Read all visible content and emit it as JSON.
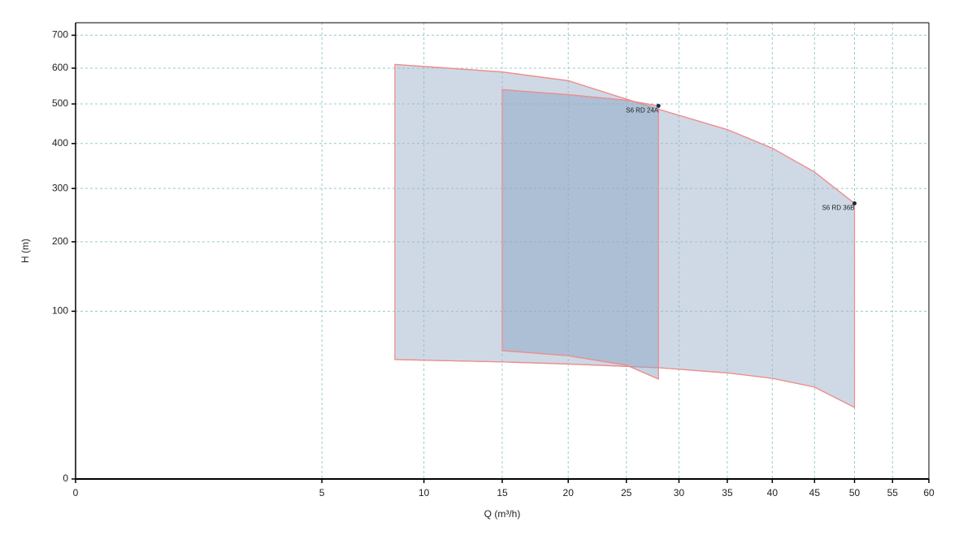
{
  "chart_data": {
    "type": "area-range",
    "x_label": "Q (m³/h)",
    "y_label": "H (m)",
    "xscale": "sqrt",
    "yscale": "sqrt",
    "xlim": [
      0,
      60
    ],
    "ylim": [
      0,
      740
    ],
    "xticks": [
      0,
      5,
      10,
      15,
      20,
      25,
      30,
      35,
      40,
      45,
      50,
      55,
      60
    ],
    "yticks": [
      0,
      100,
      200,
      300,
      400,
      500,
      600,
      700
    ],
    "grid": true,
    "line_color": "#f08a8a",
    "series": [
      {
        "name": "S6 RD 36B",
        "color": "#9db4cc",
        "x": [
          8.4,
          15,
          20,
          28,
          35,
          40,
          45,
          50
        ],
        "upper": [
          611,
          589,
          564,
          486,
          434,
          389,
          335,
          270
        ],
        "lower": [
          50.7,
          48.7,
          47,
          44,
          40,
          36,
          30,
          18.2
        ]
      },
      {
        "name": "S6 RD 24A",
        "color": "#8aa6c6",
        "x": [
          15,
          20,
          25,
          28
        ],
        "upper": [
          539,
          525,
          510,
          495
        ],
        "lower": [
          58.6,
          54,
          46,
          35.5
        ]
      }
    ]
  }
}
